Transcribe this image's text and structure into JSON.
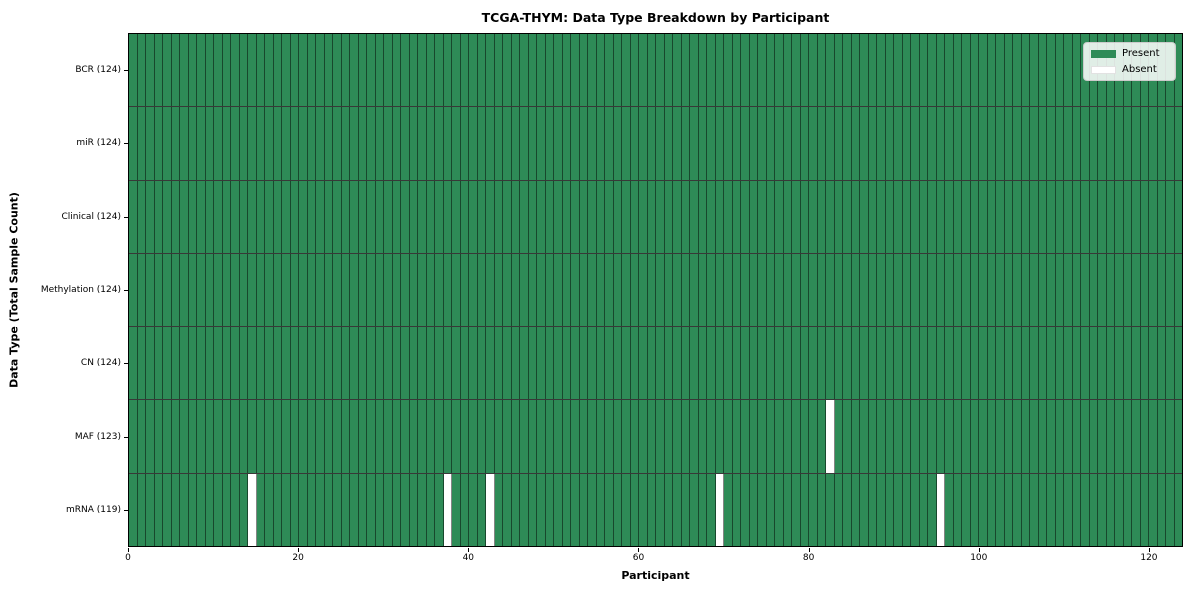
{
  "chart_data": {
    "type": "heatmap",
    "title": "TCGA-THYM: Data Type Breakdown by Participant",
    "xlabel": "Participant",
    "ylabel": "Data Type (Total Sample Count)",
    "n_participants": 124,
    "xlim": [
      0,
      124
    ],
    "x_ticks": [
      0,
      20,
      40,
      60,
      80,
      100,
      120
    ],
    "grid": true,
    "rows": [
      {
        "label": "BCR (124)",
        "data_type": "BCR",
        "present_count": 124,
        "absent_participants": []
      },
      {
        "label": "miR (124)",
        "data_type": "miR",
        "present_count": 124,
        "absent_participants": []
      },
      {
        "label": "Clinical (124)",
        "data_type": "Clinical",
        "present_count": 124,
        "absent_participants": []
      },
      {
        "label": "Methylation (124)",
        "data_type": "Methylation",
        "present_count": 124,
        "absent_participants": []
      },
      {
        "label": "CN (124)",
        "data_type": "CN",
        "present_count": 124,
        "absent_participants": []
      },
      {
        "label": "MAF (123)",
        "data_type": "MAF",
        "present_count": 123,
        "absent_participants": [
          82
        ]
      },
      {
        "label": "mRNA (119)",
        "data_type": "mRNA",
        "present_count": 119,
        "absent_participants": [
          14,
          37,
          42,
          69,
          95
        ]
      }
    ],
    "legend": {
      "position": "upper right",
      "items": [
        {
          "label": "Present",
          "color": "#2e8b57"
        },
        {
          "label": "Absent",
          "color": "#ffffff"
        }
      ]
    },
    "colors": {
      "present": "#2e8b57",
      "absent": "#ffffff",
      "cell_edge": "rgba(0,0,0,0.48)",
      "plot_border": "#000000"
    }
  }
}
